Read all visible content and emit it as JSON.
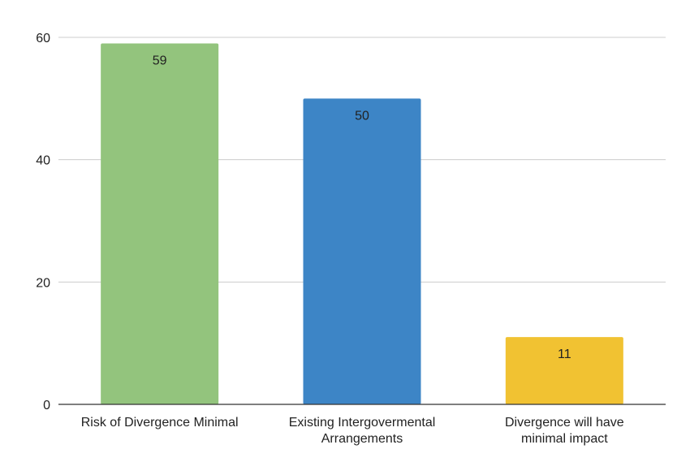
{
  "chart_data": {
    "type": "bar",
    "categories": [
      [
        "Risk of Divergence Minimal"
      ],
      [
        "Existing Intergovermental",
        "Arrangements"
      ],
      [
        "Divergence will have",
        "minimal impact"
      ]
    ],
    "values": [
      59,
      50,
      11
    ],
    "data_labels": [
      "59",
      "50",
      "11"
    ],
    "colors": [
      "#93c47d",
      "#3d85c6",
      "#f1c232"
    ],
    "ylim": [
      0,
      60
    ],
    "yticks": [
      0,
      20,
      40,
      60
    ],
    "ytick_labels": [
      "0",
      "20",
      "40",
      "60"
    ],
    "grid": true,
    "legend": "none"
  }
}
